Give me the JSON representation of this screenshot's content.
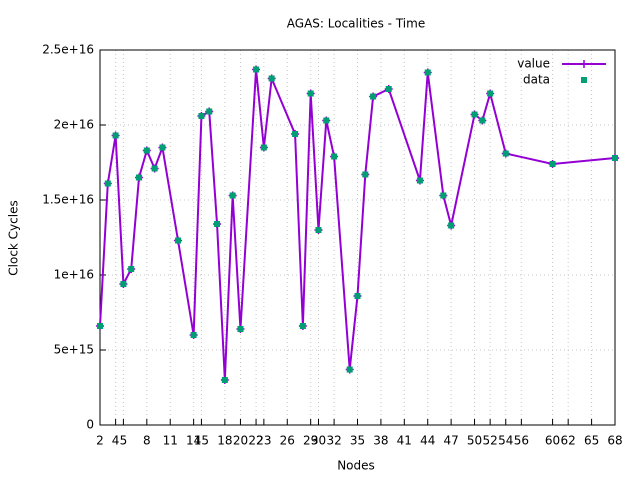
{
  "chart_data": {
    "type": "line",
    "title": "AGAS: Localities - Time",
    "x_label": "Nodes",
    "y_label": "Clock Cycles",
    "x": [
      2,
      3,
      4,
      5,
      6,
      7,
      8,
      9,
      10,
      12,
      14,
      15,
      16,
      17,
      18,
      19,
      20,
      22,
      23,
      24,
      27,
      28,
      29,
      30,
      31,
      32,
      34,
      35,
      36,
      37,
      39,
      43,
      44,
      46,
      47,
      50,
      51,
      52,
      54,
      60,
      68
    ],
    "series": [
      {
        "name": "value",
        "color": "#9400d3",
        "style": "linespoints",
        "values": [
          6600000000000000.0,
          1.61e+16,
          1.93e+16,
          9400000000000000.0,
          1.04e+16,
          1.65e+16,
          1.83e+16,
          1.71e+16,
          1.85e+16,
          1.23e+16,
          6000000000000000.0,
          2.06e+16,
          2.09e+16,
          1.34e+16,
          3000000000000000.0,
          1.53e+16,
          6400000000000000.0,
          2.37e+16,
          1.85e+16,
          2.31e+16,
          1.94e+16,
          6600000000000000.0,
          2.21e+16,
          1.3e+16,
          2.03e+16,
          1.79e+16,
          3700000000000000.0,
          8600000000000000.0,
          1.67e+16,
          2.19e+16,
          2.24e+16,
          1.63e+16,
          2.35e+16,
          1.53e+16,
          1.33e+16,
          2.07e+16,
          2.03e+16,
          2.21e+16,
          1.81e+16,
          1.74e+16,
          1.78e+16
        ]
      },
      {
        "name": "data",
        "color": "#009e73",
        "style": "points",
        "values": [
          6600000000000000.0,
          1.61e+16,
          1.93e+16,
          9400000000000000.0,
          1.04e+16,
          1.65e+16,
          1.83e+16,
          1.71e+16,
          1.85e+16,
          1.23e+16,
          6000000000000000.0,
          2.06e+16,
          2.09e+16,
          1.34e+16,
          3000000000000000.0,
          1.53e+16,
          6400000000000000.0,
          2.37e+16,
          1.85e+16,
          2.31e+16,
          1.94e+16,
          6600000000000000.0,
          2.21e+16,
          1.3e+16,
          2.03e+16,
          1.79e+16,
          3700000000000000.0,
          8600000000000000.0,
          1.67e+16,
          2.19e+16,
          2.24e+16,
          1.63e+16,
          2.35e+16,
          1.53e+16,
          1.33e+16,
          2.07e+16,
          2.03e+16,
          2.21e+16,
          1.81e+16,
          1.74e+16,
          1.78e+16
        ]
      }
    ],
    "xlim": [
      2,
      68
    ],
    "xticks": [
      2,
      4,
      5,
      8,
      11,
      14,
      15,
      18,
      20,
      22,
      23,
      26,
      29,
      30,
      32,
      35,
      38,
      41,
      44,
      47,
      50,
      52,
      54,
      56,
      60,
      62,
      65,
      68
    ],
    "ylim": [
      0,
      2.5e+16
    ],
    "yticks": [
      0,
      {
        "value": 5000000000000000.0,
        "label": "5e+15"
      },
      {
        "value": 1e+16,
        "label": "1e+16"
      },
      {
        "value": 1.5e+16,
        "label": "1.5e+16"
      },
      {
        "value": 2e+16,
        "label": "2e+16"
      },
      {
        "value": 2.5e+16,
        "label": "2.5e+16"
      }
    ],
    "grid": true,
    "legend": "top-right"
  }
}
